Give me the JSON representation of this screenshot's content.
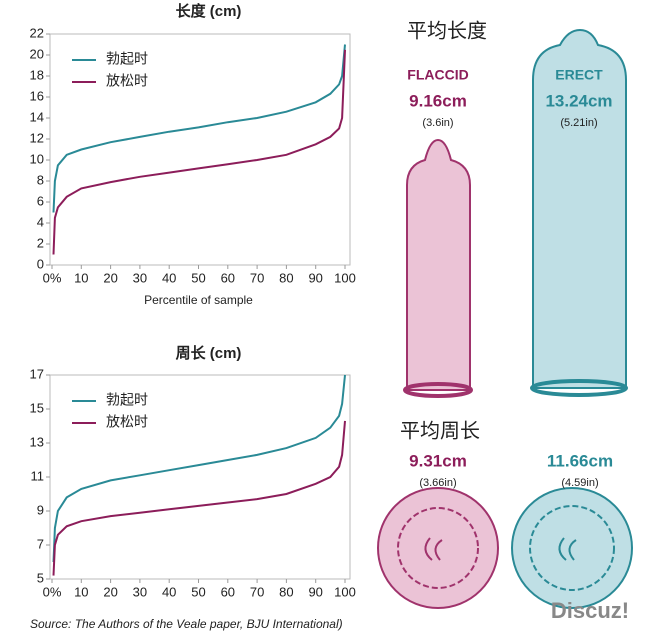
{
  "chart_data": [
    {
      "type": "line",
      "title": "长度 (cm)",
      "xlabel": "Percentile of sample",
      "x": [
        0.5,
        1,
        2,
        5,
        10,
        20,
        30,
        40,
        50,
        60,
        70,
        80,
        90,
        95,
        98,
        99,
        100
      ],
      "series": [
        {
          "name": "勃起时",
          "color": "#2a8a96",
          "values": [
            5,
            8,
            9.5,
            10.5,
            11,
            11.7,
            12.2,
            12.7,
            13.1,
            13.6,
            14,
            14.6,
            15.5,
            16.3,
            17.2,
            18,
            21
          ]
        },
        {
          "name": "放松时",
          "color": "#8c1d5a",
          "values": [
            1,
            4.5,
            5.5,
            6.5,
            7.3,
            7.9,
            8.4,
            8.8,
            9.2,
            9.6,
            10,
            10.5,
            11.5,
            12.2,
            13,
            14,
            20.5
          ]
        }
      ],
      "xlim": [
        0,
        100
      ],
      "xticks": [
        {
          "value": 0,
          "label": "0%"
        },
        10,
        20,
        30,
        40,
        50,
        60,
        70,
        80,
        90,
        100
      ],
      "ylim": [
        0,
        22
      ],
      "yticks": [
        0,
        2,
        4,
        6,
        8,
        10,
        12,
        14,
        16,
        18,
        20,
        22
      ],
      "grid": false,
      "legend": "upper left"
    },
    {
      "type": "line",
      "title": "周长 (cm)",
      "x": [
        0.5,
        1,
        2,
        5,
        10,
        20,
        30,
        40,
        50,
        60,
        70,
        80,
        90,
        95,
        98,
        99,
        100
      ],
      "series": [
        {
          "name": "勃起时",
          "color": "#2a8a96",
          "values": [
            6,
            8,
            9,
            9.8,
            10.3,
            10.8,
            11.1,
            11.4,
            11.7,
            12,
            12.3,
            12.7,
            13.3,
            13.9,
            14.6,
            15.3,
            17
          ]
        },
        {
          "name": "放松时",
          "color": "#8c1d5a",
          "values": [
            5.2,
            7,
            7.6,
            8.1,
            8.4,
            8.7,
            8.9,
            9.1,
            9.3,
            9.5,
            9.7,
            10,
            10.6,
            11,
            11.6,
            12.3,
            14.3
          ]
        }
      ],
      "xlim": [
        0,
        100
      ],
      "xticks": [
        {
          "value": 0,
          "label": "0%"
        },
        10,
        20,
        30,
        40,
        50,
        60,
        70,
        80,
        90,
        100
      ],
      "ylim": [
        5,
        17
      ],
      "yticks": [
        5,
        7,
        9,
        11,
        13,
        15,
        17
      ],
      "grid": false,
      "legend": "upper left"
    }
  ],
  "labels": {
    "length_title": "平均长度",
    "flaccid": "FLACCID",
    "flaccid_length": "9.16cm",
    "flaccid_length_in": "(3.6in)",
    "erect": "ERECT",
    "erect_length": "13.24cm",
    "erect_length_in": "(5.21in)",
    "girth_title": "平均周长",
    "flaccid_girth": "9.31cm",
    "flaccid_girth_in": "(3.66in)",
    "erect_girth": "11.66cm",
    "erect_girth_in": "(4.59in)",
    "source": "Source: The Authors of the Veale paper, BJU International)",
    "watermark": "Discuz!"
  }
}
